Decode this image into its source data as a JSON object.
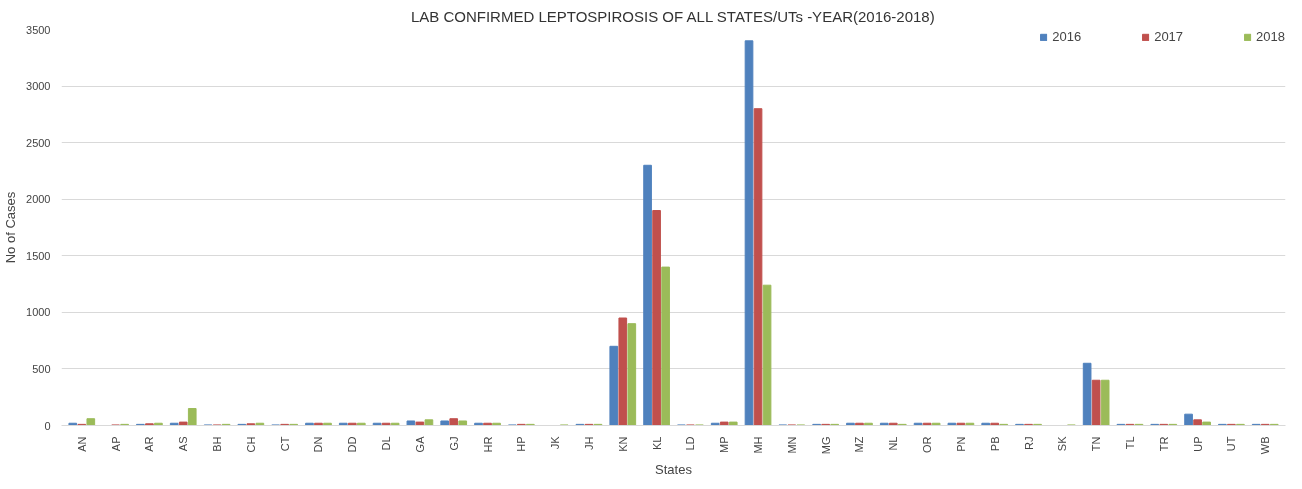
{
  "chart_data": {
    "type": "bar",
    "title": "LAB CONFIRMED LEPTOSPIROSIS OF ALL STATES/UTs -YEAR(2016-2018)",
    "xlabel": "States",
    "ylabel": "No of Cases",
    "categories": [
      "AN",
      "AP",
      "AR",
      "AS",
      "BH",
      "CH",
      "CT",
      "DN",
      "DD",
      "DL",
      "GA",
      "GJ",
      "HR",
      "HP",
      "JK",
      "JH",
      "KN",
      "KL",
      "LD",
      "MP",
      "MH",
      "MN",
      "MG",
      "MZ",
      "NL",
      "OR",
      "PN",
      "PB",
      "RJ",
      "SK",
      "TN",
      "TL",
      "TR",
      "UP",
      "UT",
      "WB"
    ],
    "series": [
      {
        "name": "2016",
        "color": "#4f81bd",
        "values": [
          20,
          0,
          10,
          20,
          5,
          10,
          5,
          20,
          20,
          20,
          40,
          40,
          20,
          5,
          0,
          10,
          700,
          2300,
          5,
          20,
          3400,
          5,
          10,
          20,
          20,
          20,
          20,
          20,
          10,
          0,
          550,
          10,
          10,
          100,
          10,
          10
        ]
      },
      {
        "name": "2017",
        "color": "#c0504d",
        "values": [
          10,
          5,
          15,
          30,
          5,
          15,
          10,
          20,
          20,
          20,
          30,
          60,
          20,
          10,
          0,
          10,
          950,
          1900,
          5,
          30,
          2800,
          5,
          10,
          20,
          20,
          20,
          20,
          20,
          10,
          0,
          400,
          10,
          10,
          50,
          10,
          10
        ]
      },
      {
        "name": "2018",
        "color": "#9bbb59",
        "values": [
          60,
          10,
          20,
          150,
          10,
          20,
          10,
          20,
          20,
          20,
          50,
          40,
          20,
          10,
          5,
          10,
          900,
          1400,
          5,
          30,
          1240,
          5,
          10,
          20,
          10,
          20,
          20,
          10,
          10,
          5,
          400,
          10,
          10,
          30,
          10,
          10
        ]
      }
    ],
    "ylim": [
      0,
      3500
    ],
    "yticks": [
      0,
      500,
      1000,
      1500,
      2000,
      2500,
      3000,
      3500
    ],
    "grid": "y",
    "legend": "top right"
  }
}
